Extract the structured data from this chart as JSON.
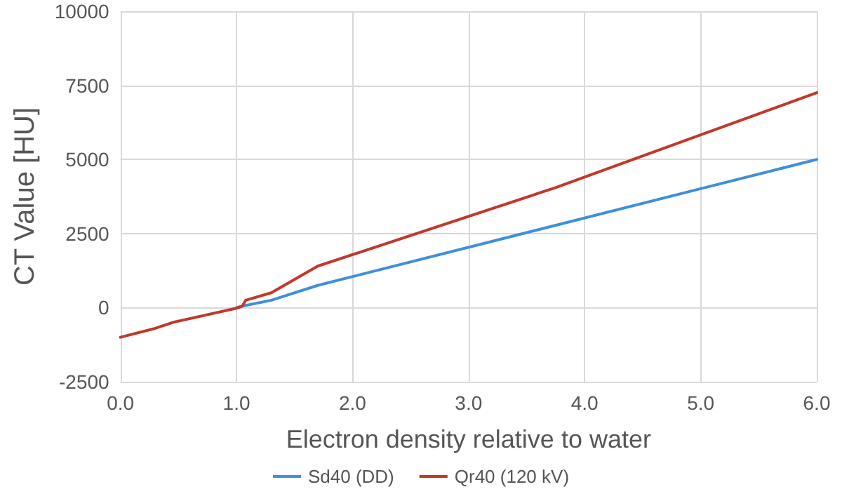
{
  "chart_data": {
    "type": "line",
    "xlabel": "Electron density relative to water",
    "ylabel": "CT Value [HU]",
    "xlim": [
      0,
      6
    ],
    "xticks": [
      {
        "value": 0,
        "label": "0.0"
      },
      {
        "value": 1,
        "label": "1.0"
      },
      {
        "value": 2,
        "label": "2.0"
      },
      {
        "value": 3,
        "label": "3.0"
      },
      {
        "value": 4,
        "label": "4.0"
      },
      {
        "value": 5,
        "label": "5.0"
      },
      {
        "value": 6,
        "label": "6.0"
      }
    ],
    "ylim": [
      -2500,
      10000
    ],
    "yticks": [
      -2500,
      0,
      2500,
      5000,
      7500,
      10000
    ],
    "grid": true,
    "legend": "bottom",
    "marker": "none",
    "line_style": "solid",
    "series": [
      {
        "name": "Sd40 (DD)",
        "color": "#3f8fdc",
        "x": [
          1.0,
          1.05,
          1.3,
          1.7,
          6.0
        ],
        "values": [
          0,
          50,
          250,
          750,
          5000
        ]
      },
      {
        "name": "Qr40 (120 kV)",
        "color": "#c0392b",
        "x": [
          0,
          0.3,
          0.45,
          1.0,
          1.05,
          1.08,
          1.3,
          1.7,
          3.75,
          6.0
        ],
        "values": [
          -1000,
          -700,
          -500,
          -20,
          50,
          250,
          500,
          1400,
          4050,
          7250
        ]
      }
    ]
  }
}
